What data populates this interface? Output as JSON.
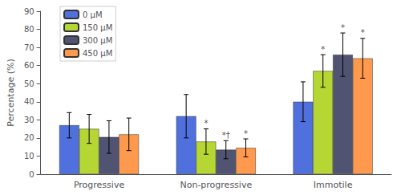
{
  "chart_data": {
    "type": "bar",
    "categories": [
      "Progressive",
      "Non-progressive",
      "Immotile"
    ],
    "series": [
      {
        "name": "0 μM",
        "values": [
          27,
          32,
          40
        ],
        "errors": [
          7,
          12,
          11
        ]
      },
      {
        "name": "150 μM",
        "values": [
          25,
          18,
          57
        ],
        "errors": [
          8,
          7,
          9
        ]
      },
      {
        "name": "300 μM",
        "values": [
          20.5,
          13.5,
          66
        ],
        "errors": [
          9,
          5,
          12
        ]
      },
      {
        "name": "450 μM",
        "values": [
          22,
          14.5,
          64
        ],
        "errors": [
          9,
          5,
          11
        ]
      }
    ],
    "ylabel": "Percentage (%)",
    "ylim": [
      0,
      90
    ],
    "yticks": [
      0,
      10,
      20,
      30,
      40,
      50,
      60,
      70,
      80,
      90
    ],
    "grid": false,
    "legend": "top-left",
    "annotations": [
      {
        "text": "*",
        "category": "Non-progressive",
        "series": "150 μM"
      },
      {
        "text": "*†",
        "category": "Non-progressive",
        "series": "300 μM"
      },
      {
        "text": "*",
        "category": "Non-progressive",
        "series": "450 μM"
      },
      {
        "text": "*",
        "category": "Immotile",
        "series": "150 μM"
      },
      {
        "text": "*",
        "category": "Immotile",
        "series": "300 μM"
      },
      {
        "text": "*",
        "category": "Immotile",
        "series": "450 μM"
      }
    ]
  }
}
